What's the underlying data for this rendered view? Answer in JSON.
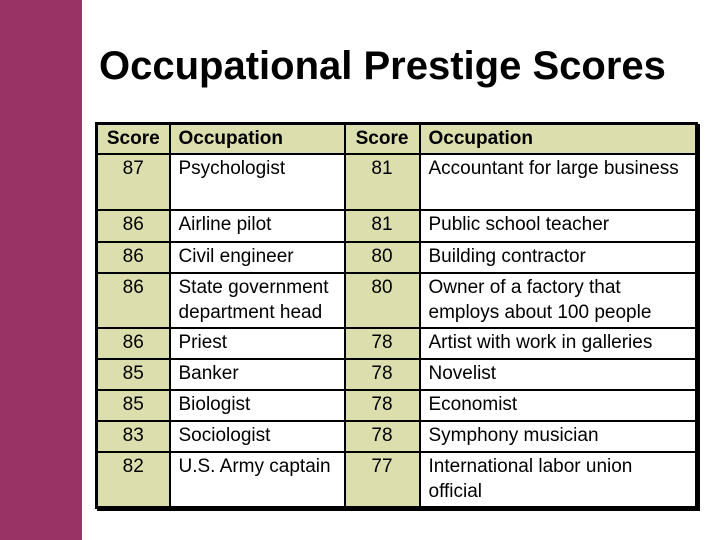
{
  "slide": {
    "title": "Occupational Prestige Scores"
  },
  "colors": {
    "accent_bar": "#993366",
    "table_header_bg": "#dcdeae",
    "score_cell_bg": "#dcdeae",
    "table_border": "#000000",
    "title_text": "#000000"
  },
  "table": {
    "headers": [
      "Score",
      "Occupation",
      "Score",
      "Occupation"
    ],
    "rows": [
      [
        "87",
        "Psychologist",
        "81",
        "Accountant for large business"
      ],
      [
        "86",
        "Airline pilot",
        "81",
        "Public school teacher"
      ],
      [
        "86",
        "Civil engineer",
        "80",
        "Building contractor"
      ],
      [
        "86",
        "State government department head",
        "80",
        "Owner of a factory that employs about 100 people"
      ],
      [
        "86",
        "Priest",
        "78",
        "Artist with work in galleries"
      ],
      [
        "85",
        "Banker",
        "78",
        "Novelist"
      ],
      [
        "85",
        "Biologist",
        "78",
        "Economist"
      ],
      [
        "83",
        "Sociologist",
        "78",
        "Symphony musician"
      ],
      [
        "82",
        "U.S. Army captain",
        "77",
        "International labor union official"
      ]
    ]
  }
}
